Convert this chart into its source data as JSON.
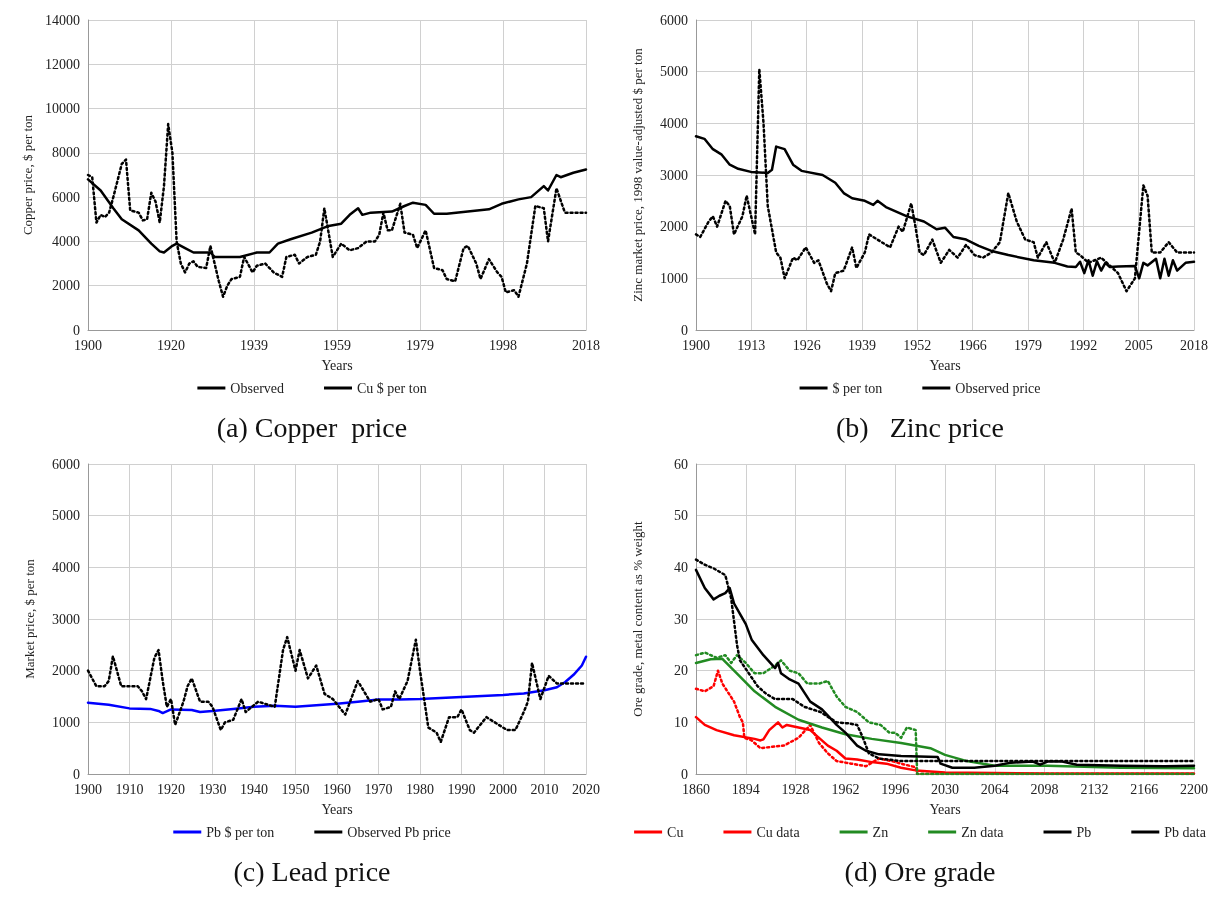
{
  "chart_data": [
    {
      "type": "line",
      "title": "(a) Copper  price",
      "xlabel": "Years",
      "ylabel": "Copper price, $ per ton",
      "xlim": [
        1900,
        2018
      ],
      "xticks": [
        1900,
        {
          "value": 1919.6667,
          "label": "1920"
        },
        {
          "value": 1939.3333,
          "label": "1939"
        },
        1959,
        {
          "value": 1978.6667,
          "label": "1979"
        },
        {
          "value": 1998.3333,
          "label": "1998"
        },
        2018
      ],
      "ylim": [
        0,
        14000
      ],
      "yticks": [
        0,
        2000,
        4000,
        6000,
        8000,
        10000,
        12000,
        14000
      ],
      "grid": true,
      "legend": "bottom",
      "series": [
        {
          "name": "Observed",
          "color": "#000000",
          "line_style": "dotted",
          "x": [
            1900,
            1901,
            1902,
            1903,
            1904,
            1905,
            1906,
            1908,
            1909,
            1910,
            1912,
            1913,
            1914,
            1915,
            1916,
            1917,
            1918,
            1919,
            1920,
            1921,
            1922,
            1923,
            1924,
            1925,
            1926,
            1928,
            1929,
            1930,
            1931,
            1932,
            1933,
            1934,
            1936,
            1937,
            1939,
            1940,
            1942,
            1944,
            1946,
            1947,
            1949,
            1950,
            1952,
            1954,
            1955,
            1956,
            1958,
            1960,
            1962,
            1964,
            1966,
            1968,
            1969,
            1970,
            1971,
            1972,
            1974,
            1975,
            1977,
            1978,
            1980,
            1982,
            1984,
            1985,
            1987,
            1989,
            1990,
            1992,
            1993,
            1995,
            1997,
            1998,
            1999,
            2001,
            2002,
            2004,
            2006,
            2008,
            2009,
            2011,
            2013,
            2018
          ],
          "values": [
            7000,
            6900,
            4850,
            5200,
            5100,
            5300,
            6000,
            7500,
            7700,
            5400,
            5300,
            4950,
            5000,
            6200,
            5800,
            4850,
            6500,
            9300,
            8000,
            4000,
            3000,
            2600,
            3000,
            3100,
            2850,
            2800,
            3800,
            3000,
            2200,
            1500,
            2000,
            2300,
            2400,
            3300,
            2600,
            2900,
            3000,
            2600,
            2400,
            3300,
            3400,
            3000,
            3300,
            3400,
            4000,
            5500,
            3300,
            3900,
            3600,
            3700,
            4000,
            4000,
            4300,
            5300,
            4500,
            4500,
            5700,
            4400,
            4300,
            3700,
            4500,
            2800,
            2700,
            2300,
            2200,
            3700,
            3800,
            3000,
            2300,
            3200,
            2600,
            2400,
            1700,
            1800,
            1500,
            3000,
            5600,
            5500,
            4000,
            6400,
            5300,
            5300
          ]
        },
        {
          "name": "Cu $ per ton",
          "color": "#000000",
          "line_style": "solid",
          "x": [
            1900,
            1903,
            1906,
            1908,
            1912,
            1915,
            1917,
            1918,
            1920,
            1921,
            1923,
            1925,
            1929,
            1930,
            1933,
            1936,
            1940,
            1943,
            1945,
            1948,
            1953,
            1957,
            1960,
            1962,
            1964,
            1965,
            1967,
            1972,
            1975,
            1977,
            1980,
            1982,
            1985,
            1990,
            1995,
            1998,
            2002,
            2005,
            2008,
            2009,
            2011,
            2012,
            2015,
            2018
          ],
          "values": [
            6800,
            6300,
            5500,
            5000,
            4500,
            3900,
            3550,
            3500,
            3800,
            3900,
            3700,
            3500,
            3500,
            3300,
            3300,
            3300,
            3500,
            3500,
            3900,
            4100,
            4400,
            4700,
            4800,
            5200,
            5500,
            5200,
            5300,
            5350,
            5600,
            5750,
            5650,
            5250,
            5250,
            5350,
            5450,
            5700,
            5900,
            6000,
            6500,
            6300,
            7000,
            6900,
            7100,
            7250
          ]
        }
      ]
    },
    {
      "type": "line",
      "title": "(b)   Zinc price",
      "xlabel": "Years",
      "ylabel": "Zinc market price, 1998 value-adjusted $ per ton",
      "xlim": [
        1900,
        2018
      ],
      "xticks": [
        1900,
        {
          "value": 1913.1111,
          "label": "1913"
        },
        {
          "value": 1926.2222,
          "label": "1926"
        },
        {
          "value": 1939.3333,
          "label": "1939"
        },
        {
          "value": 1952.4444,
          "label": "1952"
        },
        {
          "value": 1965.5556,
          "label": "1966"
        },
        {
          "value": 1978.6667,
          "label": "1979"
        },
        {
          "value": 1991.7778,
          "label": "1992"
        },
        {
          "value": 2004.8889,
          "label": "2005"
        },
        2018
      ],
      "ylim": [
        0,
        6000
      ],
      "yticks": [
        0,
        1000,
        2000,
        3000,
        4000,
        5000,
        6000
      ],
      "grid": true,
      "legend": "bottom",
      "series": [
        {
          "name": "$ per ton",
          "color": "#000000",
          "line_style": "solid",
          "x": [
            1900,
            1902,
            1904,
            1906,
            1908,
            1910,
            1913,
            1917,
            1918,
            1919,
            1921,
            1923,
            1925,
            1930,
            1933,
            1935,
            1937,
            1940,
            1942,
            1943,
            1945,
            1950,
            1954,
            1957,
            1959,
            1961,
            1964,
            1967,
            1970,
            1974,
            1980,
            1985,
            1988,
            1990,
            1991,
            1992,
            1993,
            1994,
            1995,
            1996,
            1997,
            1998,
            2000,
            2004,
            2005,
            2006,
            2007,
            2009,
            2010,
            2011,
            2012,
            2013,
            2014,
            2016,
            2018
          ],
          "values": [
            3750,
            3700,
            3500,
            3400,
            3200,
            3120,
            3060,
            3040,
            3100,
            3550,
            3500,
            3200,
            3080,
            3000,
            2850,
            2650,
            2550,
            2500,
            2420,
            2500,
            2380,
            2200,
            2100,
            1950,
            1980,
            1800,
            1750,
            1630,
            1530,
            1450,
            1350,
            1300,
            1230,
            1220,
            1320,
            1100,
            1350,
            1050,
            1330,
            1150,
            1300,
            1220,
            1230,
            1240,
            1000,
            1300,
            1250,
            1380,
            1000,
            1380,
            1050,
            1350,
            1150,
            1300,
            1320
          ]
        },
        {
          "name": "Observed price",
          "color": "#000000",
          "line_style": "dotted",
          "x": [
            1900,
            1901,
            1903,
            1904,
            1905,
            1907,
            1908,
            1909,
            1911,
            1912,
            1914,
            1915,
            1916,
            1917,
            1919,
            1920,
            1921,
            1923,
            1924,
            1926,
            1928,
            1929,
            1931,
            1932,
            1933,
            1935,
            1937,
            1938,
            1940,
            1941,
            1943,
            1946,
            1948,
            1949,
            1951,
            1952,
            1953,
            1954,
            1956,
            1958,
            1960,
            1962,
            1964,
            1966,
            1968,
            1970,
            1972,
            1974,
            1976,
            1978,
            1980,
            1981,
            1983,
            1985,
            1987,
            1989,
            1990,
            1991,
            1993,
            1996,
            2000,
            2002,
            2004,
            2006,
            2007,
            2008,
            2010,
            2012,
            2014,
            2018
          ],
          "values": [
            1850,
            1800,
            2100,
            2200,
            2000,
            2500,
            2400,
            1850,
            2200,
            2600,
            1850,
            5050,
            4000,
            2400,
            1500,
            1400,
            1000,
            1400,
            1350,
            1600,
            1300,
            1350,
            900,
            750,
            1100,
            1150,
            1600,
            1200,
            1500,
            1850,
            1750,
            1600,
            2000,
            1900,
            2450,
            2000,
            1500,
            1450,
            1750,
            1300,
            1550,
            1400,
            1650,
            1450,
            1400,
            1500,
            1700,
            2650,
            2100,
            1750,
            1700,
            1400,
            1700,
            1300,
            1750,
            2350,
            1500,
            1450,
            1300,
            1400,
            1100,
            750,
            1000,
            2800,
            2600,
            1500,
            1500,
            1700,
            1500,
            1500
          ]
        }
      ]
    },
    {
      "type": "line",
      "title": "(c) Lead price",
      "xlabel": "Years",
      "ylabel": "Market price, $ per ton",
      "xlim": [
        1900,
        2020
      ],
      "xticks": [
        1900,
        1910,
        1920,
        1930,
        1940,
        1950,
        1960,
        1970,
        1980,
        1990,
        2000,
        2010,
        2020
      ],
      "ylim": [
        0,
        6000
      ],
      "yticks": [
        0,
        1000,
        2000,
        3000,
        4000,
        5000,
        6000
      ],
      "grid": true,
      "legend": "bottom",
      "series": [
        {
          "name": "Pb $ per ton",
          "color": "#0000ff",
          "line_style": "solid",
          "x": [
            1900,
            1905,
            1910,
            1915,
            1917,
            1918,
            1920,
            1925,
            1927,
            1930,
            1935,
            1940,
            1945,
            1950,
            1955,
            1960,
            1965,
            1970,
            1975,
            1980,
            1985,
            1990,
            1995,
            2000,
            2005,
            2010,
            2013,
            2015,
            2017,
            2019,
            2020
          ],
          "values": [
            1380,
            1340,
            1270,
            1260,
            1220,
            1180,
            1250,
            1240,
            1200,
            1220,
            1260,
            1300,
            1320,
            1300,
            1330,
            1360,
            1400,
            1440,
            1440,
            1450,
            1470,
            1490,
            1510,
            1530,
            1560,
            1620,
            1680,
            1780,
            1920,
            2100,
            2270
          ]
        },
        {
          "name": "Observed Pb price",
          "color": "#000000",
          "line_style": "dotted",
          "x": [
            1900,
            1902,
            1904,
            1905,
            1906,
            1908,
            1912,
            1913,
            1914,
            1916,
            1917,
            1918,
            1919,
            1920,
            1921,
            1923,
            1924,
            1925,
            1927,
            1929,
            1930,
            1932,
            1933,
            1935,
            1937,
            1938,
            1941,
            1943,
            1945,
            1947,
            1948,
            1950,
            1951,
            1953,
            1955,
            1957,
            1959,
            1962,
            1965,
            1968,
            1970,
            1971,
            1973,
            1974,
            1975,
            1977,
            1979,
            1980,
            1982,
            1984,
            1985,
            1987,
            1989,
            1990,
            1992,
            1993,
            1996,
            1999,
            2001,
            2003,
            2005,
            2006,
            2007,
            2009,
            2011,
            2013,
            2020
          ],
          "values": [
            2000,
            1700,
            1700,
            1800,
            2280,
            1700,
            1700,
            1600,
            1450,
            2250,
            2400,
            1800,
            1300,
            1450,
            950,
            1400,
            1700,
            1850,
            1400,
            1400,
            1300,
            850,
            1000,
            1050,
            1450,
            1200,
            1400,
            1350,
            1300,
            2400,
            2650,
            2000,
            2400,
            1850,
            2100,
            1550,
            1450,
            1150,
            1800,
            1400,
            1450,
            1250,
            1300,
            1600,
            1450,
            1800,
            2600,
            2000,
            900,
            800,
            620,
            1100,
            1100,
            1250,
            850,
            800,
            1100,
            950,
            850,
            850,
            1200,
            1400,
            2150,
            1450,
            1900,
            1750,
            1750
          ]
        }
      ]
    },
    {
      "type": "line",
      "title": "(d) Ore grade",
      "xlabel": "Years",
      "ylabel": "Ore grade, metal content as % weight",
      "xlim": [
        1860,
        2200
      ],
      "xticks": [
        1860,
        1894,
        1928,
        1962,
        1996,
        2030,
        2064,
        2098,
        2132,
        2166,
        2200
      ],
      "ylim": [
        0,
        60
      ],
      "yticks": [
        0,
        10,
        20,
        30,
        40,
        50,
        60
      ],
      "grid": true,
      "legend": "bottom",
      "series": [
        {
          "name": "Cu",
          "color": "#ff0000",
          "line_style": "solid",
          "x": [
            1860,
            1866,
            1874,
            1886,
            1900,
            1904,
            1906,
            1910,
            1916,
            1919,
            1922,
            1930,
            1938,
            1944,
            1950,
            1956,
            1962,
            1970,
            1980,
            1990,
            2000,
            2010,
            2030,
            2100,
            2200
          ],
          "values": [
            11,
            9.5,
            8.5,
            7.5,
            6.8,
            6.5,
            6.7,
            8.5,
            10,
            9,
            9.5,
            9,
            8.5,
            7,
            5.5,
            4.5,
            3,
            2.8,
            2.3,
            2,
            1.2,
            0.7,
            0.3,
            0.1,
            0.1
          ]
        },
        {
          "name": "Cu data",
          "color": "#ff0000",
          "line_style": "dotted",
          "x": [
            1860,
            1866,
            1872,
            1875,
            1878,
            1886,
            1890,
            1892,
            1893,
            1898,
            1904,
            1910,
            1920,
            1930,
            1938,
            1944,
            1950,
            1956,
            1966,
            1976,
            1985,
            1995,
            2000,
            2010,
            2011,
            2200
          ],
          "values": [
            16.5,
            16,
            17,
            20,
            17.5,
            14,
            11,
            10,
            7,
            6.5,
            5,
            5.2,
            5.5,
            7,
            9.5,
            6,
            4,
            2.5,
            2,
            1.5,
            3,
            2.4,
            2,
            1.3,
            0,
            0
          ]
        },
        {
          "name": "Zn",
          "color": "#228b22",
          "line_style": "solid",
          "x": [
            1860,
            1870,
            1878,
            1886,
            1900,
            1914,
            1930,
            1946,
            1962,
            1980,
            2000,
            2020,
            2030,
            2045,
            2064,
            2100,
            2150,
            2200
          ],
          "values": [
            21.5,
            22.2,
            22.3,
            20,
            16,
            13,
            10.5,
            9,
            7.7,
            6.8,
            6,
            5,
            3.7,
            2.5,
            1.6,
            1.6,
            1.2,
            1.1
          ]
        },
        {
          "name": "Zn data",
          "color": "#228b22",
          "line_style": "dotted",
          "x": [
            1860,
            1866,
            1874,
            1880,
            1884,
            1888,
            1894,
            1900,
            1906,
            1914,
            1918,
            1924,
            1930,
            1936,
            1944,
            1950,
            1956,
            1962,
            1970,
            1978,
            1986,
            1992,
            1996,
            2000,
            2004,
            2010,
            2011,
            2200
          ],
          "values": [
            23,
            23.5,
            22.5,
            23,
            21.5,
            23,
            21.5,
            19.5,
            19.5,
            21,
            22,
            20,
            19.5,
            17.5,
            17.5,
            18,
            15,
            13,
            12,
            10,
            9.5,
            8,
            8,
            7,
            9,
            8.5,
            0,
            0
          ]
        },
        {
          "name": "Pb",
          "color": "#000000",
          "line_style": "solid",
          "x": [
            1860,
            1866,
            1872,
            1876,
            1880,
            1883,
            1886,
            1890,
            1894,
            1898,
            1906,
            1914,
            1916,
            1918,
            1924,
            1930,
            1938,
            1946,
            1956,
            1962,
            1970,
            1976,
            1985,
            2000,
            2025,
            2027,
            2035,
            2050,
            2064,
            2075,
            2090,
            2095,
            2100,
            2110,
            2120,
            2150,
            2180,
            2200
          ],
          "values": [
            39.5,
            36,
            33.8,
            34.5,
            35,
            36,
            33,
            31,
            29,
            26,
            23,
            20.5,
            21.5,
            19.5,
            18.3,
            17.5,
            14,
            12.5,
            9.5,
            8,
            5.5,
            4.5,
            3.8,
            3.5,
            3.3,
            2,
            1.2,
            1.2,
            1.6,
            2.2,
            2.4,
            1.8,
            2.4,
            2.4,
            1.8,
            1.6,
            1.5,
            1.6
          ]
        },
        {
          "name": "Pb data",
          "color": "#000000",
          "line_style": "dotted",
          "x": [
            1860,
            1866,
            1872,
            1880,
            1884,
            1888,
            1890,
            1896,
            1902,
            1908,
            1914,
            1926,
            1934,
            1945,
            1956,
            1964,
            1970,
            1974,
            1978,
            1985,
            2000,
            2030,
            2200
          ],
          "values": [
            41.5,
            40.5,
            39.8,
            38.5,
            34,
            25,
            22,
            19.5,
            17,
            15.5,
            14.5,
            14.5,
            13,
            12,
            10,
            9.8,
            9.5,
            7,
            4,
            3,
            2.5,
            2.5,
            2.5
          ]
        }
      ]
    }
  ]
}
